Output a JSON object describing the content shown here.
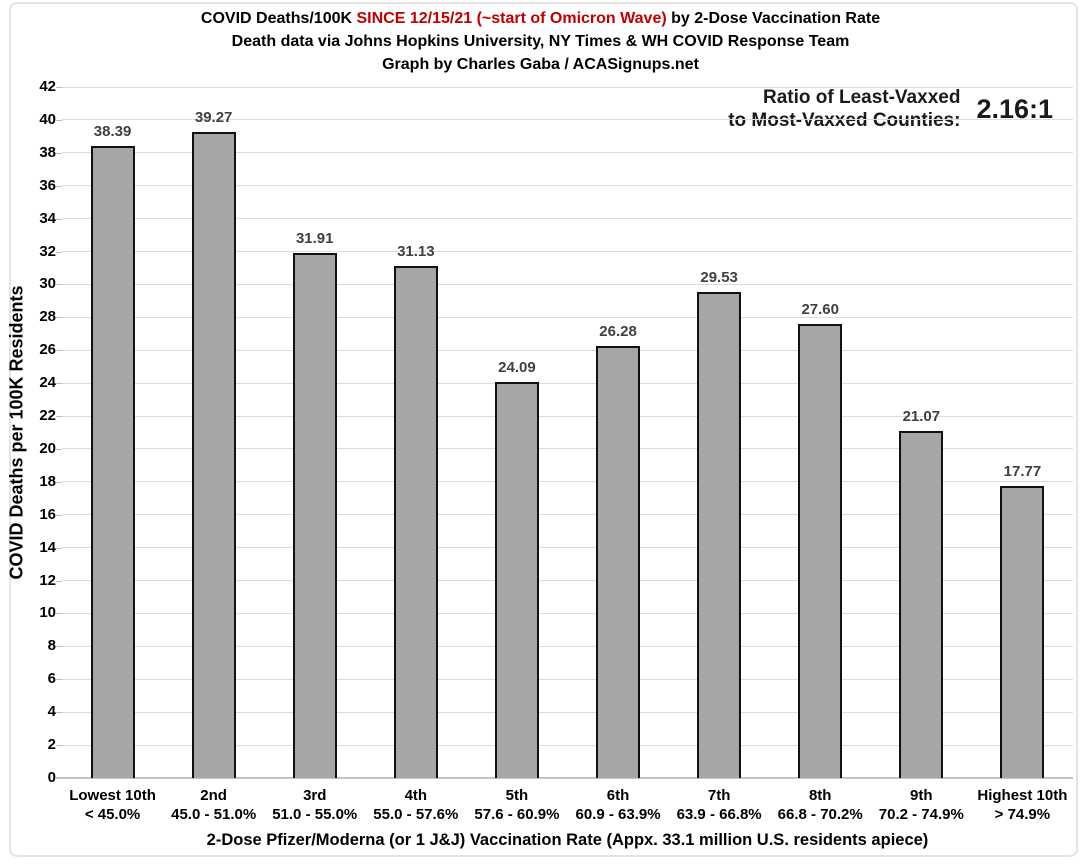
{
  "header": {
    "title_prefix": "COVID Deaths/100K ",
    "title_highlight": "SINCE 12/15/21 (~start of Omicron Wave)",
    "title_suffix": " by 2-Dose Vaccination Rate",
    "subtitle": "Death data via Johns Hopkins University, NY Times & WH COVID Response Team",
    "credit": "Graph by Charles Gaba / ACASignups.net"
  },
  "annotation": {
    "label_line1": "Ratio of Least-Vaxxed",
    "label_line2": "to Most-Vaxxed Counties:",
    "value": "2.16:1"
  },
  "chart_data": {
    "type": "bar",
    "title": "COVID Deaths/100K SINCE 12/15/21 (~start of Omicron Wave) by 2-Dose Vaccination Rate",
    "subtitle": "Death data via Johns Hopkins University, NY Times & WH COVID Response Team",
    "credit": "Graph by Charles Gaba / ACASignups.net",
    "categories": [
      {
        "line1": "Lowest 10th",
        "line2": "< 45.0%"
      },
      {
        "line1": "2nd",
        "line2": "45.0 - 51.0%"
      },
      {
        "line1": "3rd",
        "line2": "51.0 - 55.0%"
      },
      {
        "line1": "4th",
        "line2": "55.0 - 57.6%"
      },
      {
        "line1": "5th",
        "line2": "57.6 - 60.9%"
      },
      {
        "line1": "6th",
        "line2": "60.9 - 63.9%"
      },
      {
        "line1": "7th",
        "line2": "63.9 - 66.8%"
      },
      {
        "line1": "8th",
        "line2": "66.8 - 70.2%"
      },
      {
        "line1": "9th",
        "line2": "70.2 - 74.9%"
      },
      {
        "line1": "Highest 10th",
        "line2": "> 74.9%"
      }
    ],
    "values": [
      38.39,
      39.27,
      31.91,
      31.13,
      24.09,
      26.28,
      29.53,
      27.6,
      21.07,
      17.77
    ],
    "value_labels": [
      "38.39",
      "39.27",
      "31.91",
      "31.13",
      "24.09",
      "26.28",
      "29.53",
      "27.60",
      "21.07",
      "17.77"
    ],
    "xlabel": "2-Dose Pfizer/Moderna (or 1 J&J) Vaccination Rate (Appx. 33.1 million U.S. residents apiece)",
    "ylabel": "COVID Deaths per 100K Residents",
    "ylim": [
      0,
      42
    ],
    "ytick_step": 2,
    "grid": true,
    "legend": "none",
    "annotation_ratio": {
      "label": "Ratio of Least-Vaxxed to Most-Vaxxed Counties:",
      "value": "2.16:1"
    },
    "colors": {
      "bar_fill": "#a6a6a6",
      "bar_border": "#111111",
      "gridline": "#dcdcdc",
      "axis_line": "#c3c3c3",
      "data_label": "#404040",
      "title_highlight": "#c00000",
      "text": "#000000"
    }
  }
}
